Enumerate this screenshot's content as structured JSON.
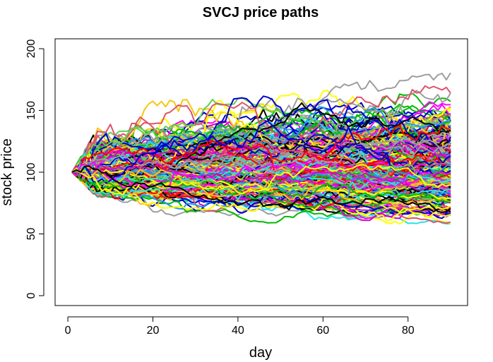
{
  "chart_data": {
    "type": "line",
    "title": "SVCJ price paths",
    "xlabel": "day",
    "ylabel": "stock price",
    "xlim": [
      -3,
      94
    ],
    "ylim": [
      -8,
      208
    ],
    "x_ticks": [
      0,
      20,
      40,
      60,
      80
    ],
    "y_ticks": [
      0,
      50,
      100,
      150,
      200
    ],
    "x_tick_labels": [
      "0",
      "20",
      "40",
      "60",
      "80"
    ],
    "y_tick_labels": [
      "0",
      "50",
      "100",
      "150",
      "200"
    ],
    "grid": false,
    "legend": "none",
    "start_value": 100,
    "days": [
      1,
      90
    ],
    "palette": [
      "#000000",
      "#DF536B",
      "#61D04F",
      "#2297E6",
      "#28E2E5",
      "#CD0BBC",
      "#F5C710",
      "#9E9E9E",
      "#FF0000",
      "#0000CD",
      "#00BB00",
      "#FF00FF",
      "#FFFF00"
    ],
    "series_summary": {
      "count": 300,
      "day_90_range": [
        54,
        181
      ],
      "path_envelope": [
        {
          "day": 1,
          "min": 100,
          "max": 100
        },
        {
          "day": 10,
          "min": 68,
          "max": 155
        },
        {
          "day": 30,
          "min": 62,
          "max": 160
        },
        {
          "day": 50,
          "min": 58,
          "max": 162
        },
        {
          "day": 70,
          "min": 56,
          "max": 175
        },
        {
          "day": 90,
          "min": 54,
          "max": 181
        }
      ]
    }
  }
}
